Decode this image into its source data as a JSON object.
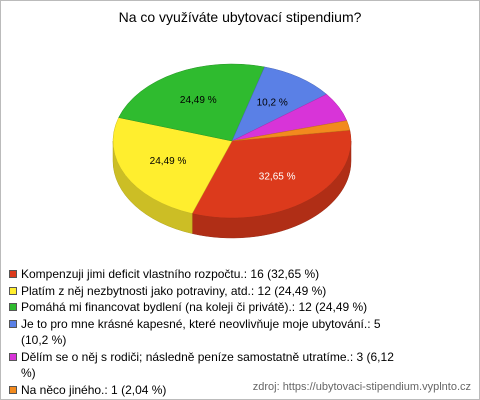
{
  "chart_data": {
    "type": "pie",
    "title": "Na co využíváte ubytovací stipendium?",
    "categories": [
      "Kompenzuji jimi deficit vlastního rozpočtu.: 16 (32,65 %)",
      "Platím z něj nezbytnosti jako potraviny, atd.: 12 (24,49 %)",
      "Pomáhá mi financovat bydlení (na koleji či privátě).: 12 (24,49 %)",
      "Je to pro mne krásné kapesné, které neovlivňuje moje ubytování.: 5 (10,2 %)",
      "Dělím se o něj s rodiči; následně peníze samostatně utratíme.: 3 (6,12 %)",
      "Na něco jiného.: 1 (2,04 %)"
    ],
    "values": [
      32.65,
      24.49,
      24.49,
      10.2,
      6.12,
      2.04
    ],
    "value_labels": [
      "32,65 %",
      "24,49 %",
      "24,49 %",
      "10,2 %",
      null,
      null
    ],
    "colors": [
      "#dc3a1c",
      "#ffee2e",
      "#2fbb2f",
      "#5a80e6",
      "#d834d8",
      "#f28a1e"
    ],
    "note": "zdroj: https://ubytovaci-stipendium.vyplnto.cz"
  }
}
